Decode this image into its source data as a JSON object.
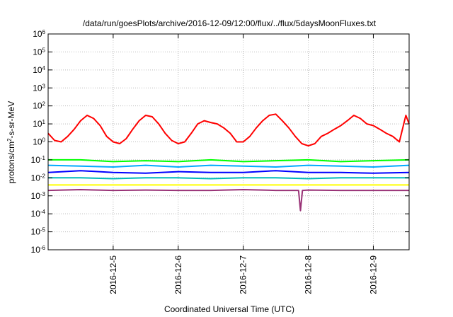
{
  "chart_data": {
    "type": "line",
    "title": "/data/run/goesPlots/archive/2016-12-09/12:00/flux/../flux/5daysMoonFluxes.txt",
    "xlabel": "Coordinated Universal Time (UTC)",
    "ylabel": {
      "pre": "protons/cm",
      "sup": "2",
      "post": "-s-sr-MeV"
    },
    "yscale": "log",
    "ylim": [
      1e-06,
      1000000.0
    ],
    "xlim": [
      0,
      5.55
    ],
    "y_ticks": [
      {
        "base": "10",
        "exp": "-6",
        "value": 1e-06
      },
      {
        "base": "10",
        "exp": "-5",
        "value": 1e-05
      },
      {
        "base": "10",
        "exp": "-4",
        "value": 0.0001
      },
      {
        "base": "10",
        "exp": "-3",
        "value": 0.001
      },
      {
        "base": "10",
        "exp": "-2",
        "value": 0.01
      },
      {
        "base": "10",
        "exp": "-1",
        "value": 0.1
      },
      {
        "base": "10",
        "exp": "0",
        "value": 1
      },
      {
        "base": "10",
        "exp": "1",
        "value": 10
      },
      {
        "base": "10",
        "exp": "2",
        "value": 100
      },
      {
        "base": "10",
        "exp": "3",
        "value": 1000
      },
      {
        "base": "10",
        "exp": "4",
        "value": 10000
      },
      {
        "base": "10",
        "exp": "5",
        "value": 100000
      },
      {
        "base": "10",
        "exp": "6",
        "value": 1000000
      }
    ],
    "x_ticks": [
      {
        "label": "2016-12-5",
        "value": 1
      },
      {
        "label": "2016-12-6",
        "value": 2
      },
      {
        "label": "2016-12-7",
        "value": 3
      },
      {
        "label": "2016-12-8",
        "value": 4
      },
      {
        "label": "2016-12-9",
        "value": 5
      }
    ],
    "grid": true,
    "series": [
      {
        "color": "#ff0000",
        "x": [
          0,
          0.1,
          0.2,
          0.3,
          0.4,
          0.5,
          0.6,
          0.7,
          0.8,
          0.9,
          1.0,
          1.1,
          1.2,
          1.3,
          1.4,
          1.5,
          1.6,
          1.7,
          1.8,
          1.9,
          2.0,
          2.1,
          2.2,
          2.3,
          2.4,
          2.5,
          2.6,
          2.7,
          2.8,
          2.9,
          3.0,
          3.1,
          3.2,
          3.3,
          3.4,
          3.5,
          3.6,
          3.7,
          3.8,
          3.9,
          4.0,
          4.1,
          4.2,
          4.3,
          4.4,
          4.5,
          4.6,
          4.7,
          4.8,
          4.9,
          5.0,
          5.1,
          5.2,
          5.3,
          5.4,
          5.5,
          5.55
        ],
        "values": [
          3,
          1.2,
          1,
          2,
          5,
          15,
          30,
          20,
          8,
          2,
          1,
          0.8,
          1.5,
          5,
          15,
          30,
          25,
          10,
          3,
          1.2,
          0.8,
          1,
          3,
          10,
          15,
          12,
          10,
          6,
          3,
          1,
          1,
          2,
          6,
          15,
          30,
          35,
          15,
          6,
          2,
          0.8,
          0.6,
          0.8,
          2,
          3,
          5,
          8,
          15,
          30,
          20,
          10,
          8,
          5,
          3,
          2,
          1,
          30,
          10
        ]
      },
      {
        "color": "#00ff00",
        "x": [
          0,
          0.5,
          1.0,
          1.5,
          2.0,
          2.5,
          3.0,
          3.5,
          4.0,
          4.5,
          5.0,
          5.55
        ],
        "values": [
          0.1,
          0.1,
          0.08,
          0.09,
          0.08,
          0.1,
          0.08,
          0.09,
          0.1,
          0.08,
          0.09,
          0.1
        ]
      },
      {
        "color": "#00aaff",
        "x": [
          0,
          0.5,
          1.0,
          1.5,
          2.0,
          2.5,
          3.0,
          3.5,
          4.0,
          4.5,
          5.0,
          5.55
        ],
        "values": [
          0.05,
          0.045,
          0.04,
          0.05,
          0.04,
          0.05,
          0.045,
          0.04,
          0.05,
          0.045,
          0.04,
          0.05
        ]
      },
      {
        "color": "#0000ff",
        "x": [
          0,
          0.5,
          1.0,
          1.5,
          2.0,
          2.5,
          3.0,
          3.5,
          4.0,
          4.5,
          5.0,
          5.55
        ],
        "values": [
          0.02,
          0.025,
          0.02,
          0.018,
          0.022,
          0.02,
          0.02,
          0.025,
          0.02,
          0.02,
          0.018,
          0.02
        ]
      },
      {
        "color": "#00bbbb",
        "x": [
          0,
          0.5,
          1.0,
          1.5,
          2.0,
          2.5,
          3.0,
          3.5,
          4.0,
          4.5,
          5.0,
          5.55
        ],
        "values": [
          0.01,
          0.01,
          0.009,
          0.01,
          0.01,
          0.009,
          0.01,
          0.01,
          0.009,
          0.01,
          0.01,
          0.01
        ]
      },
      {
        "color": "#ffff00",
        "x": [
          0,
          0.5,
          1.0,
          1.5,
          2.0,
          2.5,
          3.0,
          3.5,
          4.0,
          4.5,
          5.0,
          5.55
        ],
        "values": [
          0.004,
          0.004,
          0.004,
          0.004,
          0.004,
          0.004,
          0.004,
          0.004,
          0.004,
          0.004,
          0.004,
          0.004
        ]
      },
      {
        "color": "#993377",
        "x": [
          0,
          0.5,
          1.0,
          1.5,
          2.0,
          2.5,
          3.0,
          3.5,
          3.85,
          3.88,
          3.91,
          4.0,
          4.5,
          5.0,
          5.55
        ],
        "values": [
          0.002,
          0.0022,
          0.002,
          0.0021,
          0.002,
          0.002,
          0.0022,
          0.002,
          0.002,
          0.00015,
          0.002,
          0.0021,
          0.002,
          0.002,
          0.002
        ]
      }
    ]
  }
}
